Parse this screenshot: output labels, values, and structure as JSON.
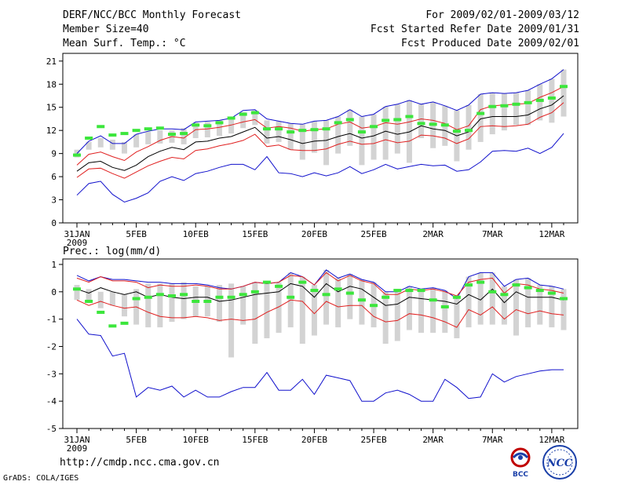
{
  "header": {
    "title": "DERF/NCC/BCC Monthly Forecast",
    "member_size": "Member Size=40",
    "variable": "Mean Surf. Temp.: °C",
    "forecast_range": "For 2009/02/01-2009/03/12",
    "started": "Fcst Started Refer Date 2009/01/31",
    "produced": "Fcst Produced Date 2009/02/01"
  },
  "footer": {
    "url": "http://cmdp.ncc.cma.gov.cn",
    "grads_credit": "GrADS: COLA/IGES",
    "logo_bcc_text": "BCC",
    "logo_ncc_text": "NCC"
  },
  "colors": {
    "gray_bar": "#d3d3d3",
    "green": "#3ce63c",
    "red": "#e02020",
    "blue": "#1010cc",
    "black": "#000000"
  },
  "chart_data": [
    {
      "type": "box-plume",
      "title": "Mean Surf. Temp.: °C",
      "x_tick_labels": [
        "31JAN",
        "5FEB",
        "10FEB",
        "15FEB",
        "20FEB",
        "25FEB",
        "2MAR",
        "7MAR",
        "12MAR"
      ],
      "x_year_label": "2009",
      "y_tick_labels": [
        "0",
        "3",
        "6",
        "9",
        "12",
        "15",
        "18",
        "21"
      ],
      "ylim": [
        0,
        22
      ],
      "day_index_range": [
        0,
        40
      ],
      "ensemble_mean": [
        6.7,
        7.8,
        8.0,
        7.2,
        6.8,
        7.5,
        8.6,
        9.3,
        9.8,
        9.5,
        10.5,
        10.6,
        11.0,
        11.2,
        11.8,
        12.4,
        11.0,
        11.2,
        10.8,
        10.3,
        10.6,
        10.7,
        11.2,
        11.6,
        11.0,
        11.3,
        11.9,
        11.5,
        11.8,
        12.6,
        12.2,
        12.0,
        11.3,
        11.8,
        13.5,
        13.8,
        13.8,
        13.8,
        14.0,
        14.8,
        15.3,
        16.5
      ],
      "mean_plus_sd": [
        7.5,
        8.9,
        9.2,
        8.6,
        8.1,
        9.2,
        9.9,
        10.7,
        11.2,
        11.0,
        12.1,
        12.2,
        12.4,
        12.7,
        13.1,
        13.4,
        12.3,
        12.5,
        12.3,
        11.9,
        12.1,
        12.2,
        12.8,
        13.1,
        12.3,
        12.5,
        13.0,
        12.8,
        13.1,
        13.5,
        13.3,
        12.9,
        12.1,
        12.6,
        14.7,
        15.2,
        15.3,
        15.4,
        15.5,
        16.3,
        16.9,
        17.7
      ],
      "mean_minus_sd": [
        5.9,
        7.0,
        7.1,
        6.4,
        5.8,
        6.6,
        7.4,
        8.0,
        8.5,
        8.3,
        9.4,
        9.6,
        10.0,
        10.3,
        10.7,
        11.5,
        9.9,
        10.1,
        9.5,
        9.4,
        9.4,
        9.6,
        10.2,
        10.6,
        10.2,
        10.3,
        10.8,
        10.4,
        10.6,
        11.4,
        11.3,
        11.0,
        10.3,
        10.9,
        12.5,
        12.6,
        12.5,
        12.6,
        12.8,
        13.7,
        14.3,
        15.6
      ],
      "ensemble_max": [
        9.0,
        10.6,
        11.3,
        10.3,
        10.3,
        11.5,
        11.9,
        12.2,
        12.2,
        12.1,
        13.1,
        13.2,
        13.3,
        13.6,
        14.6,
        14.7,
        13.5,
        13.2,
        12.9,
        12.8,
        13.2,
        13.3,
        13.8,
        14.7,
        13.8,
        14.1,
        15.1,
        15.4,
        15.9,
        15.4,
        15.7,
        15.2,
        14.6,
        15.3,
        16.7,
        16.9,
        16.8,
        16.9,
        17.2,
        18.0,
        18.7,
        19.9
      ],
      "ensemble_min": [
        3.6,
        5.1,
        5.4,
        3.7,
        2.7,
        3.2,
        3.9,
        5.4,
        6.0,
        5.5,
        6.4,
        6.7,
        7.2,
        7.6,
        7.6,
        6.9,
        8.6,
        6.5,
        6.4,
        6.0,
        6.5,
        6.1,
        6.5,
        7.3,
        6.4,
        6.9,
        7.6,
        7.0,
        7.3,
        7.6,
        7.4,
        7.5,
        6.7,
        6.9,
        7.9,
        9.3,
        9.4,
        9.3,
        9.7,
        9.0,
        9.8,
        11.6
      ],
      "member_box_low": [
        8.5,
        9.5,
        9.8,
        9.5,
        9.0,
        9.8,
        10.2,
        10.3,
        10.4,
        10.2,
        11.0,
        11.1,
        11.3,
        11.6,
        12.3,
        12.7,
        10.3,
        10.5,
        9.5,
        8.2,
        9.1,
        7.5,
        9.0,
        10.0,
        7.5,
        8.2,
        8.2,
        9.0,
        7.8,
        11.0,
        9.7,
        10.0,
        8.0,
        9.5,
        10.5,
        11.5,
        12.0,
        12.7,
        12.7,
        13.3,
        13.0,
        13.8
      ],
      "member_box_high": [
        9.5,
        10.5,
        11.0,
        10.8,
        10.5,
        11.5,
        11.8,
        12.0,
        12.0,
        12.3,
        13.0,
        13.1,
        13.3,
        13.6,
        14.4,
        14.6,
        13.3,
        13.2,
        12.9,
        12.8,
        13.2,
        13.3,
        13.8,
        14.7,
        13.8,
        14.1,
        15.1,
        15.4,
        15.9,
        15.4,
        15.7,
        15.2,
        14.6,
        15.3,
        16.7,
        16.9,
        16.8,
        16.9,
        17.2,
        18.0,
        18.7,
        19.9
      ],
      "green_markers": [
        8.8,
        11.0,
        12.5,
        11.4,
        11.6,
        12.0,
        12.2,
        12.3,
        11.5,
        11.6,
        12.7,
        12.6,
        13.0,
        13.6,
        14.1,
        14.3,
        12.2,
        12.2,
        11.8,
        12.0,
        12.1,
        12.2,
        13.0,
        13.4,
        11.8,
        12.5,
        13.3,
        13.4,
        13.8,
        12.9,
        12.8,
        12.7,
        11.9,
        12.0,
        14.2,
        15.1,
        15.2,
        15.4,
        15.6,
        15.9,
        16.2,
        17.7
      ]
    },
    {
      "type": "box-plume",
      "title": "Prec.: log(mm/d)",
      "x_tick_labels": [
        "31JAN",
        "5FEB",
        "10FEB",
        "15FEB",
        "20FEB",
        "25FEB",
        "2MAR",
        "7MAR",
        "12MAR"
      ],
      "x_year_label": "2009",
      "y_tick_labels": [
        "-5",
        "-4",
        "-3",
        "-2",
        "-1",
        "0",
        "1"
      ],
      "ylim": [
        -5,
        1.2
      ],
      "day_index_range": [
        0,
        40
      ],
      "ensemble_mean": [
        0.1,
        -0.05,
        0.15,
        0.0,
        -0.1,
        0.0,
        -0.2,
        -0.1,
        -0.2,
        -0.25,
        -0.2,
        -0.2,
        -0.35,
        -0.3,
        -0.2,
        -0.1,
        -0.05,
        0.0,
        0.3,
        0.2,
        -0.2,
        0.3,
        0.0,
        0.2,
        0.1,
        -0.2,
        -0.5,
        -0.45,
        -0.2,
        -0.25,
        -0.3,
        -0.35,
        -0.45,
        -0.1,
        -0.3,
        0.1,
        -0.4,
        0.0,
        -0.2,
        -0.2,
        -0.2,
        -0.3
      ],
      "mean_plus_sd": [
        0.5,
        0.35,
        0.55,
        0.4,
        0.4,
        0.35,
        0.15,
        0.25,
        0.2,
        0.2,
        0.25,
        0.2,
        0.1,
        0.1,
        0.2,
        0.35,
        0.3,
        0.35,
        0.6,
        0.55,
        0.25,
        0.7,
        0.4,
        0.6,
        0.4,
        0.3,
        -0.1,
        -0.1,
        0.1,
        0.05,
        0.1,
        0.0,
        -0.15,
        0.35,
        0.45,
        0.5,
        -0.05,
        0.3,
        0.25,
        0.1,
        0.05,
        -0.05
      ],
      "mean_minus_sd": [
        -0.3,
        -0.5,
        -0.35,
        -0.5,
        -0.6,
        -0.55,
        -0.75,
        -0.9,
        -0.95,
        -0.95,
        -0.9,
        -0.95,
        -1.05,
        -1.0,
        -1.05,
        -1.0,
        -0.75,
        -0.55,
        -0.3,
        -0.35,
        -0.8,
        -0.35,
        -0.55,
        -0.5,
        -0.5,
        -0.9,
        -1.1,
        -1.05,
        -0.8,
        -0.85,
        -0.95,
        -1.1,
        -1.3,
        -0.65,
        -0.85,
        -0.55,
        -1.0,
        -0.65,
        -0.8,
        -0.7,
        -0.8,
        -0.85
      ],
      "ensemble_max": [
        0.6,
        0.4,
        0.55,
        0.45,
        0.45,
        0.4,
        0.35,
        0.35,
        0.3,
        0.3,
        0.3,
        0.25,
        0.15,
        0.1,
        0.2,
        0.35,
        0.3,
        0.35,
        0.7,
        0.55,
        0.25,
        0.8,
        0.5,
        0.65,
        0.45,
        0.35,
        0.0,
        0.0,
        0.2,
        0.1,
        0.15,
        0.05,
        -0.25,
        0.55,
        0.7,
        0.7,
        0.2,
        0.45,
        0.5,
        0.25,
        0.2,
        0.1
      ],
      "ensemble_min": [
        -1.0,
        -1.55,
        -1.6,
        -2.35,
        -2.25,
        -3.85,
        -3.5,
        -3.6,
        -3.45,
        -3.85,
        -3.6,
        -3.85,
        -3.85,
        -3.65,
        -3.5,
        -3.5,
        -2.95,
        -3.6,
        -3.6,
        -3.2,
        -3.75,
        -3.05,
        -3.15,
        -3.25,
        -4.0,
        -4.0,
        -3.7,
        -3.6,
        -3.75,
        -4.0,
        -4.0,
        -3.2,
        -3.5,
        -3.9,
        -3.85,
        -3.0,
        -3.3,
        -3.1,
        -3.0,
        -2.9,
        -2.85,
        -2.85
      ],
      "member_box_low": [
        -0.3,
        -0.4,
        -0.6,
        -0.5,
        -0.9,
        -1.2,
        -1.3,
        -1.3,
        -1.1,
        -1.0,
        -0.9,
        -0.9,
        -1.1,
        -2.4,
        -1.2,
        -1.9,
        -1.7,
        -1.5,
        -1.3,
        -1.9,
        -1.6,
        -1.2,
        -1.3,
        -1.0,
        -1.2,
        -1.3,
        -1.9,
        -1.8,
        -1.4,
        -1.5,
        -1.5,
        -1.5,
        -1.7,
        -1.3,
        -1.2,
        -1.2,
        -1.2,
        -1.6,
        -1.3,
        -1.2,
        -1.3,
        -1.4
      ],
      "member_box_high": [
        0.25,
        0.1,
        0.0,
        0.0,
        -0.1,
        0.1,
        0.3,
        0.3,
        0.3,
        0.35,
        0.2,
        0.2,
        0.25,
        0.3,
        0.2,
        0.35,
        0.3,
        0.35,
        0.7,
        0.55,
        0.25,
        0.8,
        0.5,
        0.65,
        0.45,
        0.35,
        0.0,
        0.0,
        0.2,
        0.1,
        0.15,
        0.05,
        -0.25,
        0.55,
        0.7,
        0.7,
        0.2,
        0.45,
        0.5,
        0.25,
        0.2,
        0.1
      ],
      "green_markers": [
        0.1,
        -0.35,
        -0.75,
        -1.25,
        -1.15,
        -0.25,
        -0.2,
        -0.1,
        -0.15,
        -0.1,
        -0.35,
        -0.35,
        -0.2,
        -0.2,
        -0.1,
        0.0,
        0.35,
        0.2,
        -0.2,
        0.35,
        0.05,
        -0.1,
        0.1,
        -0.05,
        -0.3,
        -0.5,
        -0.2,
        0.05,
        0.05,
        0.05,
        -0.3,
        -0.55,
        -0.2,
        0.25,
        0.35,
        0.0,
        -0.1,
        0.25,
        0.15,
        0.05,
        -0.05,
        -0.25
      ]
    }
  ]
}
